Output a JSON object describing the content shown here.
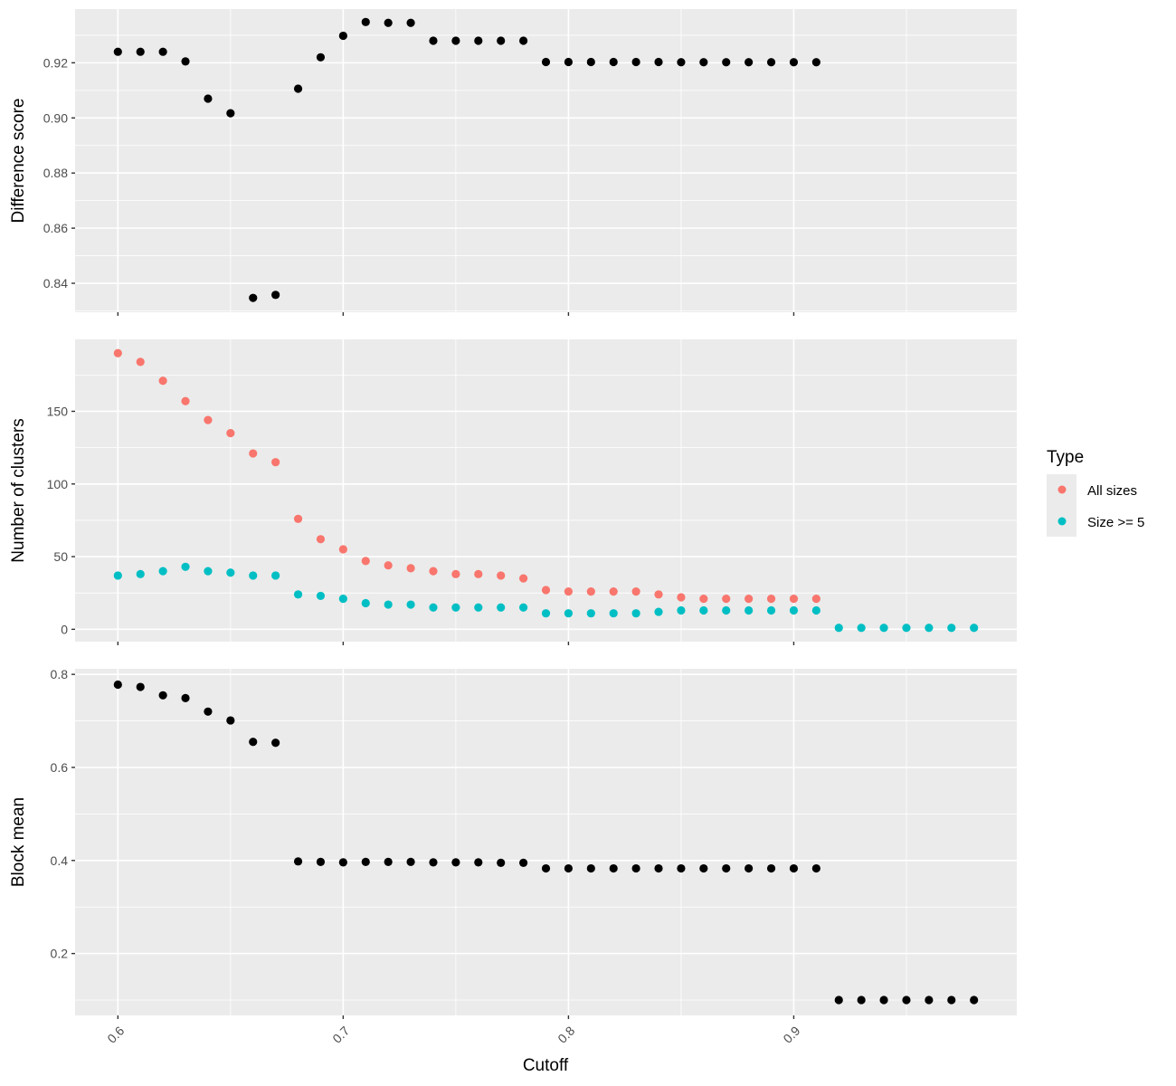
{
  "chart_data": [
    {
      "type": "scatter",
      "name": "difference-score-panel",
      "ylabel": "Difference score",
      "xlim": [
        0.581,
        0.999
      ],
      "ylim": [
        0.8295,
        0.9395
      ],
      "y_ticks": [
        0.84,
        0.86,
        0.88,
        0.9,
        0.92
      ],
      "y_tick_labels": [
        "0.84",
        "0.86",
        "0.88",
        "0.90",
        "0.92"
      ],
      "x_ticks": [
        0.6,
        0.7,
        0.8,
        0.9
      ],
      "color": "#000000",
      "points": {
        "x": [
          0.6,
          0.61,
          0.62,
          0.63,
          0.64,
          0.65,
          0.66,
          0.67,
          0.68,
          0.69,
          0.7,
          0.71,
          0.72,
          0.73,
          0.74,
          0.75,
          0.76,
          0.77,
          0.78,
          0.79,
          0.8,
          0.81,
          0.82,
          0.83,
          0.84,
          0.85,
          0.86,
          0.87,
          0.88,
          0.89,
          0.9,
          0.91
        ],
        "y": [
          0.924,
          0.924,
          0.924,
          0.9205,
          0.907,
          0.9017,
          0.8347,
          0.8358,
          0.9106,
          0.922,
          0.9298,
          0.9348,
          0.9345,
          0.9345,
          0.928,
          0.928,
          0.928,
          0.928,
          0.928,
          0.9203,
          0.9203,
          0.9203,
          0.9203,
          0.9203,
          0.9203,
          0.9202,
          0.9202,
          0.9202,
          0.9202,
          0.9202,
          0.9202,
          0.9202
        ]
      }
    },
    {
      "type": "scatter",
      "name": "number-of-clusters-panel",
      "ylabel": "Number of clusters",
      "xlim": [
        0.581,
        0.999
      ],
      "ylim": [
        -8.5,
        199.5
      ],
      "y_ticks": [
        0,
        50,
        100,
        150
      ],
      "y_tick_labels": [
        "0",
        "50",
        "100",
        "150"
      ],
      "x_ticks": [
        0.6,
        0.7,
        0.8,
        0.9
      ],
      "legend": {
        "title": "Type",
        "position": "right",
        "entries": [
          {
            "label": "All sizes",
            "color": "#f8766d"
          },
          {
            "label": "Size >= 5",
            "color": "#00bfc4"
          }
        ]
      },
      "series": [
        {
          "name": "All sizes",
          "color": "#f8766d",
          "x": [
            0.6,
            0.61,
            0.62,
            0.63,
            0.64,
            0.65,
            0.66,
            0.67,
            0.68,
            0.69,
            0.7,
            0.71,
            0.72,
            0.73,
            0.74,
            0.75,
            0.76,
            0.77,
            0.78,
            0.79,
            0.8,
            0.81,
            0.82,
            0.83,
            0.84,
            0.85,
            0.86,
            0.87,
            0.88,
            0.89,
            0.9,
            0.91
          ],
          "y": [
            190,
            184,
            171,
            157,
            144,
            135,
            121,
            115,
            76,
            62,
            55,
            47,
            44,
            42,
            40,
            38,
            38,
            37,
            35,
            27,
            26,
            26,
            26,
            26,
            24,
            22,
            21,
            21,
            21,
            21,
            21,
            21
          ]
        },
        {
          "name": "Size >= 5",
          "color": "#00bfc4",
          "x": [
            0.6,
            0.61,
            0.62,
            0.63,
            0.64,
            0.65,
            0.66,
            0.67,
            0.68,
            0.69,
            0.7,
            0.71,
            0.72,
            0.73,
            0.74,
            0.75,
            0.76,
            0.77,
            0.78,
            0.79,
            0.8,
            0.81,
            0.82,
            0.83,
            0.84,
            0.85,
            0.86,
            0.87,
            0.88,
            0.89,
            0.9,
            0.91,
            0.92,
            0.93,
            0.94,
            0.95,
            0.96,
            0.97,
            0.98
          ],
          "y": [
            37,
            38,
            40,
            43,
            40,
            39,
            37,
            37,
            24,
            23,
            21,
            18,
            17,
            17,
            15,
            15,
            15,
            15,
            15,
            11,
            11,
            11,
            11,
            11,
            12,
            13,
            13,
            13,
            13,
            13,
            13,
            13,
            1,
            1,
            1,
            1,
            1,
            1,
            1
          ]
        }
      ]
    },
    {
      "type": "scatter",
      "name": "block-mean-panel",
      "ylabel": "Block mean",
      "xlabel": "Cutoff",
      "xlim": [
        0.581,
        0.999
      ],
      "ylim": [
        0.067,
        0.812
      ],
      "y_ticks": [
        0.2,
        0.4,
        0.6,
        0.8
      ],
      "y_tick_labels": [
        "0.2",
        "0.4",
        "0.6",
        "0.8"
      ],
      "x_ticks": [
        0.6,
        0.7,
        0.8,
        0.9
      ],
      "x_tick_labels": [
        "0.6",
        "0.7",
        "0.8",
        "0.9"
      ],
      "color": "#000000",
      "points": {
        "x": [
          0.6,
          0.61,
          0.62,
          0.63,
          0.64,
          0.65,
          0.66,
          0.67,
          0.68,
          0.69,
          0.7,
          0.71,
          0.72,
          0.73,
          0.74,
          0.75,
          0.76,
          0.77,
          0.78,
          0.79,
          0.8,
          0.81,
          0.82,
          0.83,
          0.84,
          0.85,
          0.86,
          0.87,
          0.88,
          0.89,
          0.9,
          0.91,
          0.92,
          0.93,
          0.94,
          0.95,
          0.96,
          0.97,
          0.98
        ],
        "y": [
          0.778,
          0.773,
          0.755,
          0.749,
          0.72,
          0.701,
          0.655,
          0.653,
          0.398,
          0.397,
          0.396,
          0.397,
          0.397,
          0.397,
          0.396,
          0.396,
          0.396,
          0.395,
          0.395,
          0.383,
          0.383,
          0.383,
          0.383,
          0.383,
          0.383,
          0.383,
          0.383,
          0.383,
          0.383,
          0.383,
          0.383,
          0.383,
          0.1,
          0.1,
          0.1,
          0.1,
          0.1,
          0.1,
          0.1
        ]
      }
    }
  ]
}
